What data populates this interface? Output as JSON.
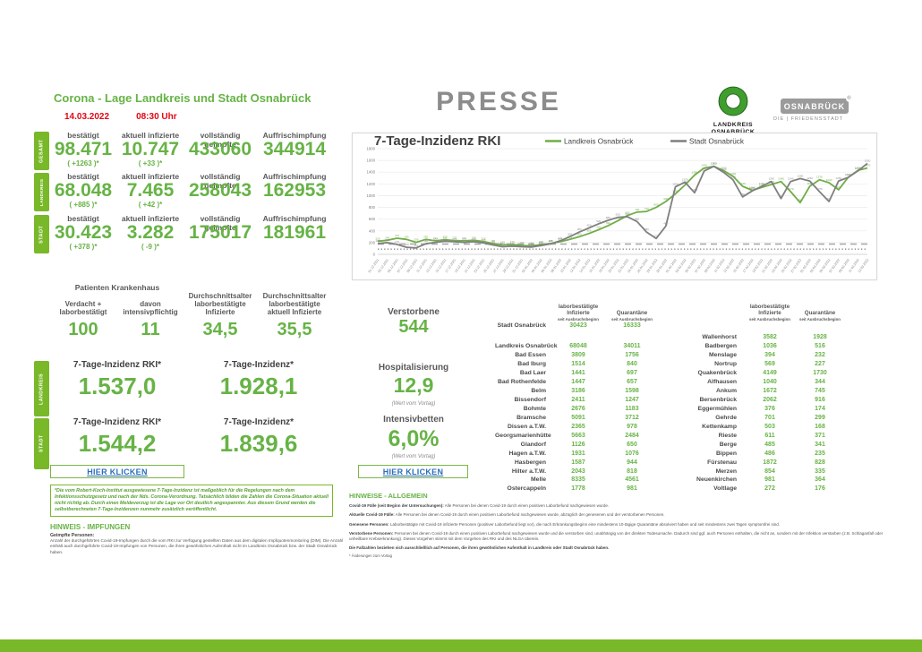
{
  "colors": {
    "green": "#67b346",
    "tab_green": "#79b829",
    "red": "#e30613",
    "gray": "#595959",
    "link_blue": "#2a6ebb",
    "border_green": "#7ab648",
    "presse_gray": "#8c8c8c",
    "footer_green": "#79b829"
  },
  "header": {
    "presse": "PRESSE"
  },
  "logos": {
    "landkreis": {
      "line1": "LANDKREIS",
      "line2": "OSNABRÜCK"
    },
    "stadt": {
      "badge": "OSNABRÜCK",
      "reg": "®",
      "sub": "DIE | FRIEDENSSTADT"
    }
  },
  "left": {
    "title": "Corona - Lage Landkreis und Stadt Osnabrück",
    "date": "14.03.2022",
    "time": "08:30 Uhr",
    "stat_headers": [
      "bestätigt",
      "aktuell infizierte",
      "vollständig geimpfte",
      "Auffrischimpfung"
    ],
    "stat_rows": [
      {
        "tab": "GESAMT",
        "values": [
          "98.471",
          "10.747",
          "433060",
          "344914"
        ],
        "deltas": [
          "( +1263 )*",
          "( +33 )*",
          "",
          ""
        ]
      },
      {
        "tab": "LANDKREIS",
        "values": [
          "68.048",
          "7.465",
          "258043",
          "162953"
        ],
        "deltas": [
          "( +885 )*",
          "( +42 )*",
          "",
          ""
        ]
      },
      {
        "tab": "STADT",
        "values": [
          "30.423",
          "3.282",
          "175017",
          "181961"
        ],
        "deltas": [
          "( +378 )*",
          "( -9 )*",
          "",
          ""
        ]
      }
    ],
    "hospital": {
      "title": "Patienten Krankenhaus",
      "cols": [
        {
          "lines": [
            "Verdacht +",
            "laborbestätigt"
          ],
          "value": "100"
        },
        {
          "lines": [
            "davon",
            "intensivpflichtig"
          ],
          "value": "11"
        },
        {
          "lines": [
            "Durchschnittsalter",
            "laborbestätigte",
            "Infizierte"
          ],
          "value": "34,5"
        },
        {
          "lines": [
            "Durchschnittsalter",
            "laborbestätigte",
            "aktuell Infizierte"
          ],
          "value": "35,5"
        }
      ]
    },
    "incidence": {
      "rows": [
        {
          "tab": "LANDKREIS",
          "rki_label": "7-Tage-Inzidenz RKI*",
          "rki_value": "1.537,0",
          "own_label": "7-Tage-Inzidenz*",
          "own_value": "1.928,1"
        },
        {
          "tab": "STADT",
          "rki_label": "7-Tage-Inzidenz RKI*",
          "rki_value": "1.544,2",
          "own_label": "7-Tage-Inzidenz*",
          "own_value": "1.839,6"
        }
      ]
    },
    "click_link": "HIER KLICKEN",
    "note": "*Die vom Robert-Koch-Institut ausgewiesene 7-Tage-Inzidenz ist maßgeblich für die Regelungen nach dem Infektionsschutzgesetz und nach der Nds. Corona-Verordnung. Tatsächlich bilden die Zahlen die Corona-Situation aktuell nicht richtig ab. Durch einen Meldeverzug ist die Lage vor Ort deutlich angespannter. Aus diesem Grund werden die selbstberechneten 7-Tage-Inzidenzen nunmehr zusätzlich veröffentlicht.",
    "impfungen": {
      "heading": "HINWEIS - IMPFUNGEN",
      "sub": "Geimpfte Personen:",
      "body": "Anzahl der durchgeführten Covid-19-Impfungen durch die vom RKI zur Verfügung gestellten Daten aus dem digitalen Impfquotenmonitoring (DIM). Die Anzahl enthält auch durchgeführte Covid-19-Impfungen von Personen, die ihren gewöhnlichen Aufenthalt nicht im Landkreis Osnabrück bzw. der Stadt Osnabrück haben."
    }
  },
  "middle": {
    "verstorbene_label": "Verstorbene",
    "verstorbene_value": "544",
    "hosp_label": "Hospitalisierung",
    "hosp_value": "12,9",
    "hosp_note": "(Wert vom Vortag)",
    "icu_label": "Intensivbetten",
    "icu_value": "6,0%",
    "icu_note": "(Wert vom Vortag)",
    "click_link": "HIER KLICKEN"
  },
  "tables": {
    "headers": [
      {
        "lines": [
          "laborbestätigte",
          "Infizierte"
        ],
        "sub": "seit Ausbruchsbeginn"
      },
      {
        "lines": [
          "Quarantäne"
        ],
        "sub": "seit Ausbruchsbeginn"
      }
    ],
    "left": {
      "top_row": [
        "Stadt Osnabrück",
        "30423",
        "16333"
      ],
      "rows": [
        [
          "Landkreis Osnabrück",
          "68048",
          "34011"
        ],
        [
          "Bad Essen",
          "3809",
          "1756"
        ],
        [
          "Bad Iburg",
          "1514",
          "840"
        ],
        [
          "Bad Laer",
          "1441",
          "697"
        ],
        [
          "Bad Rothenfelde",
          "1447",
          "657"
        ],
        [
          "Belm",
          "3186",
          "1598"
        ],
        [
          "Bissendorf",
          "2411",
          "1247"
        ],
        [
          "Bohmte",
          "2676",
          "1183"
        ],
        [
          "Bramsche",
          "5091",
          "3712"
        ],
        [
          "Dissen a.T.W.",
          "2365",
          "978"
        ],
        [
          "Georgsmarienhütte",
          "5663",
          "2484"
        ],
        [
          "Glandorf",
          "1126",
          "650"
        ],
        [
          "Hagen a.T.W.",
          "1931",
          "1076"
        ],
        [
          "Hasbergen",
          "1587",
          "944"
        ],
        [
          "Hilter a.T.W.",
          "2043",
          "818"
        ],
        [
          "Melle",
          "8335",
          "4561"
        ],
        [
          "Ostercappeln",
          "1778",
          "981"
        ]
      ]
    },
    "right": {
      "rows": [
        [
          "Wallenhorst",
          "3582",
          "1928"
        ],
        [
          "Badbergen",
          "1036",
          "516"
        ],
        [
          "Menslage",
          "394",
          "232"
        ],
        [
          "Nortrup",
          "569",
          "227"
        ],
        [
          "Quakenbrück",
          "4149",
          "1730"
        ],
        [
          "Alfhausen",
          "1040",
          "344"
        ],
        [
          "Ankum",
          "1672",
          "745"
        ],
        [
          "Bersenbrück",
          "2062",
          "916"
        ],
        [
          "Eggermühlen",
          "376",
          "174"
        ],
        [
          "Gehrde",
          "701",
          "299"
        ],
        [
          "Kettenkamp",
          "503",
          "168"
        ],
        [
          "Rieste",
          "611",
          "371"
        ],
        [
          "Berge",
          "485",
          "341"
        ],
        [
          "Bippen",
          "486",
          "235"
        ],
        [
          "Fürstenau",
          "1872",
          "828"
        ],
        [
          "Merzen",
          "854",
          "335"
        ],
        [
          "Neuenkirchen",
          "981",
          "364"
        ],
        [
          "Voltlage",
          "272",
          "176"
        ]
      ]
    }
  },
  "allgemein": {
    "heading": "HINWEISE - ALLGEMEIN",
    "paragraphs": [
      {
        "lead": "Covid-19 Fälle (seit Beginn der Untersuchungen):",
        "text": " Alle Personen bei denen Covid-19 durch einen positiven Laborbefund nachgewiesen wurde."
      },
      {
        "lead": "Aktuelle Covid-19 Fälle:",
        "text": " Alle Personen bei denen Covid-19 durch einen positiven Laborbefund nachgewiesen wurde, abzüglich der genesenen und der verstorbenen Personen."
      },
      {
        "lead": "Genesene Personen:",
        "text": " Laborbestätigte mit Covid-19 infizierte Personen (positiver Laborbefund liegt vor), die nach Erkrankungsbeginn eine mindestens 10-tägige Quarantäne absolviert haben und seit mindestens zwei Tagen symptomfrei sind."
      },
      {
        "lead": "Verstorbene Personen:",
        "text": " Personen bei denen Covid-19 durch einen positiven Laborbefund nachgewiesen wurde und die verstorben sind, unabhängig von der direkten Todesursache. Dadurch sind ggf. auch Personen enthalten, die nicht an, sondern mit der Infektion verstarben (z.B. Schlaganfall oder unheilbare Krebserkrankung). Dieses Vorgehen stimmt mit dem Vorgehen des RKI und des NLGA überein."
      },
      {
        "lead": "Die Fallzahlen beziehen sich ausschließlich auf Personen, die ihren gewöhnlichen Aufenthalt in Landkreis oder Stadt Osnabrück haben.",
        "text": ""
      }
    ],
    "footnote": "* Änderungen zum Vortag"
  },
  "chart_data": {
    "type": "line",
    "title": "7-Tage-Inzidenz RKI",
    "xlabel": "",
    "ylabel": "",
    "ylim": [
      0,
      1800
    ],
    "ytick_step": 200,
    "grid": true,
    "legend_position": "top",
    "x": [
      "01.12.2021",
      "03.12.2021",
      "05.12.2021",
      "07.12.2021",
      "09.12.2021",
      "11.12.2021",
      "13.12.2021",
      "15.12.2021",
      "17.12.2021",
      "19.12.2021",
      "21.12.2021",
      "23.12.2021",
      "25.12.2021",
      "27.12.2021",
      "29.12.2021",
      "31.12.2021",
      "02.01.2022",
      "04.01.2022",
      "06.01.2022",
      "08.01.2022",
      "10.01.2022",
      "12.01.2022",
      "14.01.2022",
      "16.01.2022",
      "18.01.2022",
      "20.01.2022",
      "22.01.2022",
      "24.01.2022",
      "26.01.2022",
      "28.01.2022",
      "30.01.2022",
      "01.02.2022",
      "03.02.2022",
      "05.02.2022",
      "07.02.2022",
      "09.02.2022",
      "11.02.2022",
      "13.02.2022",
      "15.02.2022",
      "17.02.2022",
      "19.02.2022",
      "21.02.2022",
      "23.02.2022",
      "25.02.2022",
      "27.02.2022",
      "01.03.2022",
      "03.03.2022",
      "05.03.2022",
      "07.03.2022",
      "09.03.2022",
      "11.03.2022",
      "13.03.2022"
    ],
    "series": [
      {
        "name": "Landkreis Osnabrück",
        "color": "#70ad47",
        "label_color": "#76a84e",
        "values": [
          225,
          240,
          275,
          255,
          205,
          255,
          230,
          250,
          235,
          230,
          240,
          220,
          185,
          160,
          170,
          150,
          145,
          165,
          185,
          215,
          255,
          300,
          355,
          420,
          490,
          570,
          660,
          720,
          730,
          800,
          900,
          1030,
          1180,
          1350,
          1470,
          1500,
          1430,
          1330,
          1160,
          1090,
          1140,
          1190,
          1240,
          1070,
          880,
          1160,
          1270,
          1220,
          1100,
          1310,
          1430,
          1470
        ]
      },
      {
        "name": "Stadt Osnabrück",
        "color": "#7f7f7f",
        "label_color": "#8c8c8c",
        "values": [
          185,
          200,
          170,
          120,
          110,
          180,
          205,
          225,
          215,
          205,
          215,
          195,
          160,
          130,
          140,
          130,
          125,
          150,
          180,
          230,
          300,
          380,
          450,
          520,
          580,
          630,
          640,
          560,
          380,
          270,
          480,
          1150,
          1230,
          1050,
          1420,
          1500,
          1400,
          1270,
          980,
          1080,
          1160,
          1240,
          950,
          1240,
          1290,
          1250,
          1070,
          900,
          1250,
          1310,
          1420,
          1550
        ]
      }
    ],
    "ref_lines": [
      {
        "value": 175,
        "color": "#a6a6a6",
        "dash": "7 5",
        "width": 1.4
      },
      {
        "value": 90,
        "color": "#595959",
        "dash": "1.3 2.3",
        "width": 1
      }
    ]
  }
}
